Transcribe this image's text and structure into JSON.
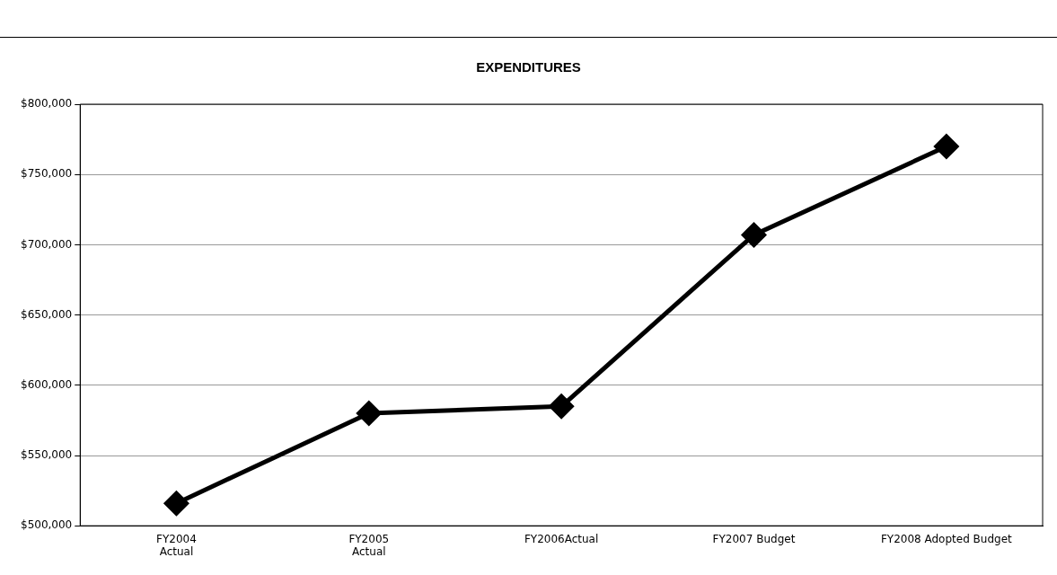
{
  "chart_data": {
    "type": "line",
    "title": "EXPENDITURES",
    "categories": [
      "FY2004\nActual",
      "FY2005\nActual",
      "FY2006Actual",
      "FY2007 Budget",
      "FY2008 Adopted Budget"
    ],
    "series": [
      {
        "color": "#000000",
        "values": [
          516000,
          580000,
          585000,
          707000,
          770000
        ]
      }
    ],
    "ylim": [
      500000,
      800000
    ],
    "yticks": [
      {
        "value": 500000,
        "label": "$500,000"
      },
      {
        "value": 550000,
        "label": "$550,000"
      },
      {
        "value": 600000,
        "label": "$600,000"
      },
      {
        "value": 650000,
        "label": "$650,000"
      },
      {
        "value": 700000,
        "label": "$700,000"
      },
      {
        "value": 750000,
        "label": "$750,000"
      },
      {
        "value": 800000,
        "label": "$800,000"
      }
    ],
    "grid": "y",
    "legend": false,
    "marker": "diamond",
    "line_style": "solid"
  }
}
